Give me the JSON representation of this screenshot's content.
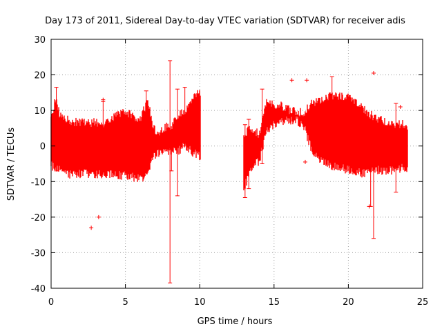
{
  "chart_data": {
    "type": "scatter",
    "title": "Day 173 of 2011, Sidereal Day-to-day VTEC variation (SDTVAR) for receiver adis",
    "xlabel": "GPS time / hours",
    "ylabel": "SDTVAR / TECUs",
    "xlim": [
      0,
      25
    ],
    "ylim": [
      -40,
      30
    ],
    "xticks": [
      0,
      5,
      10,
      15,
      20,
      25
    ],
    "yticks": [
      -40,
      -30,
      -20,
      -10,
      0,
      10,
      20,
      30
    ],
    "grid": true,
    "series": [
      {
        "name": "SDTVAR",
        "color": "#ff0000",
        "marker": "plus",
        "note": "dense error-bar band; values give the upper/lower envelope of the band at each time",
        "envelope": [
          {
            "x": 0.0,
            "upper": 8.5,
            "lower": -6.5
          },
          {
            "x": 0.3,
            "upper": 15.0,
            "lower": -8.0
          },
          {
            "x": 0.6,
            "upper": 9.5,
            "lower": -8.0
          },
          {
            "x": 1.0,
            "upper": 9.0,
            "lower": -9.0
          },
          {
            "x": 1.5,
            "upper": 8.0,
            "lower": -9.5
          },
          {
            "x": 2.0,
            "upper": 8.0,
            "lower": -9.0
          },
          {
            "x": 2.5,
            "upper": 7.5,
            "lower": -9.0
          },
          {
            "x": 3.0,
            "upper": 8.0,
            "lower": -9.5
          },
          {
            "x": 3.5,
            "upper": 7.5,
            "lower": -9.0
          },
          {
            "x": 4.0,
            "upper": 9.0,
            "lower": -9.0
          },
          {
            "x": 4.5,
            "upper": 10.0,
            "lower": -9.5
          },
          {
            "x": 5.0,
            "upper": 11.0,
            "lower": -9.5
          },
          {
            "x": 5.5,
            "upper": 9.5,
            "lower": -10.0
          },
          {
            "x": 6.0,
            "upper": 9.0,
            "lower": -10.5
          },
          {
            "x": 6.5,
            "upper": 14.0,
            "lower": -9.5
          },
          {
            "x": 6.9,
            "upper": 6.0,
            "lower": -4.0
          },
          {
            "x": 7.3,
            "upper": 5.0,
            "lower": -3.0
          },
          {
            "x": 7.7,
            "upper": 6.5,
            "lower": -3.0
          },
          {
            "x": 8.1,
            "upper": 7.0,
            "lower": -2.5
          },
          {
            "x": 8.5,
            "upper": 10.0,
            "lower": -3.0
          },
          {
            "x": 9.0,
            "upper": 11.0,
            "lower": -1.0
          },
          {
            "x": 9.5,
            "upper": 15.0,
            "lower": -3.0
          },
          {
            "x": 10.0,
            "upper": 16.0,
            "lower": -4.0
          },
          {
            "x": 13.0,
            "upper": 5.0,
            "lower": -13.0
          },
          {
            "x": 13.5,
            "upper": 6.0,
            "lower": -7.0
          },
          {
            "x": 14.0,
            "upper": 4.5,
            "lower": -5.5
          },
          {
            "x": 14.5,
            "upper": 14.0,
            "lower": 3.0
          },
          {
            "x": 15.0,
            "upper": 13.0,
            "lower": 5.0
          },
          {
            "x": 15.5,
            "upper": 12.5,
            "lower": 5.5
          },
          {
            "x": 16.0,
            "upper": 11.5,
            "lower": 6.0
          },
          {
            "x": 16.5,
            "upper": 11.0,
            "lower": 6.0
          },
          {
            "x": 17.0,
            "upper": 10.5,
            "lower": 4.5
          },
          {
            "x": 17.5,
            "upper": 13.0,
            "lower": -2.0
          },
          {
            "x": 18.0,
            "upper": 14.0,
            "lower": -5.0
          },
          {
            "x": 18.5,
            "upper": 15.0,
            "lower": -6.0
          },
          {
            "x": 19.0,
            "upper": 15.5,
            "lower": -7.0
          },
          {
            "x": 19.5,
            "upper": 15.5,
            "lower": -7.5
          },
          {
            "x": 20.0,
            "upper": 15.0,
            "lower": -8.0
          },
          {
            "x": 20.5,
            "upper": 14.0,
            "lower": -8.5
          },
          {
            "x": 21.0,
            "upper": 12.0,
            "lower": -9.0
          },
          {
            "x": 21.5,
            "upper": 10.0,
            "lower": -8.5
          },
          {
            "x": 22.0,
            "upper": 9.0,
            "lower": -8.0
          },
          {
            "x": 22.5,
            "upper": 8.0,
            "lower": -8.5
          },
          {
            "x": 23.0,
            "upper": 7.5,
            "lower": -8.0
          },
          {
            "x": 23.5,
            "upper": 7.5,
            "lower": -7.5
          },
          {
            "x": 24.0,
            "upper": 7.0,
            "lower": -7.5
          }
        ],
        "spikes": [
          {
            "x": 0.35,
            "high": 16.5,
            "low": -7.0
          },
          {
            "x": 3.5,
            "high": 12.5,
            "low": 0.0
          },
          {
            "x": 6.4,
            "high": 15.5,
            "low": -5.0
          },
          {
            "x": 8.0,
            "high": 24.0,
            "low": -38.5
          },
          {
            "x": 8.1,
            "high": 3.0,
            "low": -7.0
          },
          {
            "x": 8.5,
            "high": 16.0,
            "low": -14.0
          },
          {
            "x": 9.0,
            "high": 16.5,
            "low": 0.0
          },
          {
            "x": 13.05,
            "high": 6.0,
            "low": -14.5
          },
          {
            "x": 13.3,
            "high": 7.5,
            "low": -12.0
          },
          {
            "x": 14.2,
            "high": 16.0,
            "low": -5.0
          },
          {
            "x": 18.9,
            "high": 19.5,
            "low": 3.0
          },
          {
            "x": 21.5,
            "high": 2.0,
            "low": -17.0
          },
          {
            "x": 21.7,
            "high": 7.0,
            "low": -26.0
          },
          {
            "x": 23.2,
            "high": 12.0,
            "low": -13.0
          }
        ],
        "outliers": [
          {
            "x": 2.7,
            "y": -23.0
          },
          {
            "x": 3.2,
            "y": -20.0
          },
          {
            "x": 3.5,
            "y": 13.0
          },
          {
            "x": 16.2,
            "y": 18.5
          },
          {
            "x": 17.2,
            "y": 18.5
          },
          {
            "x": 21.7,
            "y": 20.5
          },
          {
            "x": 23.5,
            "y": 11.0
          },
          {
            "x": 21.4,
            "y": -17.0
          },
          {
            "x": 17.1,
            "y": -4.5
          }
        ]
      }
    ]
  }
}
